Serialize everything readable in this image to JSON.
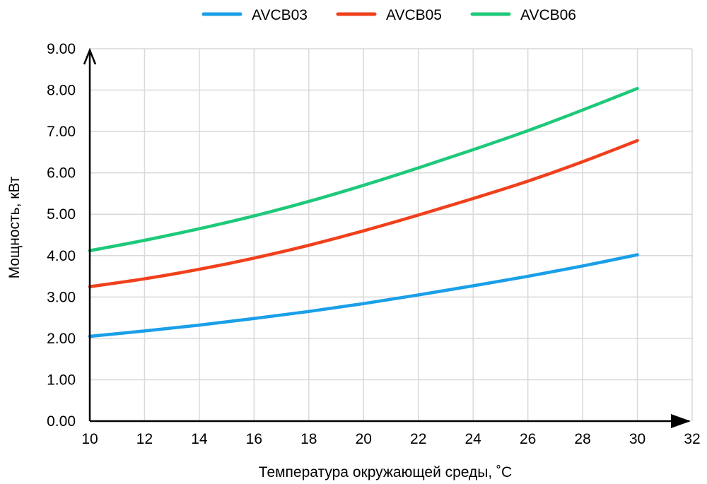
{
  "chart_data": {
    "type": "line",
    "title": "",
    "xlabel": "Температура окружающей среды, ˚C",
    "ylabel": "Мощность, кВт",
    "xlim": [
      10,
      32
    ],
    "ylim": [
      0,
      9
    ],
    "x_ticks": [
      "10",
      "12",
      "14",
      "16",
      "18",
      "20",
      "22",
      "24",
      "26",
      "28",
      "30",
      "32"
    ],
    "y_ticks": [
      "0.00",
      "1.00",
      "2.00",
      "3.00",
      "4.00",
      "5.00",
      "6.00",
      "7.00",
      "8.00",
      "9.00"
    ],
    "grid": true,
    "legend_position": "top-center",
    "x": [
      10,
      12,
      14,
      16,
      18,
      20,
      22,
      24,
      26,
      28,
      30
    ],
    "series": [
      {
        "name": "AVCB03",
        "color": "#1a9fe8",
        "values": [
          2.05,
          2.18,
          2.32,
          2.48,
          2.65,
          2.84,
          3.05,
          3.27,
          3.5,
          3.75,
          4.02
        ]
      },
      {
        "name": "AVCB05",
        "color": "#f0401c",
        "values": [
          3.25,
          3.44,
          3.67,
          3.94,
          4.25,
          4.6,
          4.98,
          5.38,
          5.8,
          6.27,
          6.78
        ]
      },
      {
        "name": "AVCB06",
        "color": "#1ec97a",
        "values": [
          4.12,
          4.37,
          4.65,
          4.96,
          5.31,
          5.7,
          6.12,
          6.56,
          7.02,
          7.52,
          8.04
        ]
      }
    ]
  }
}
